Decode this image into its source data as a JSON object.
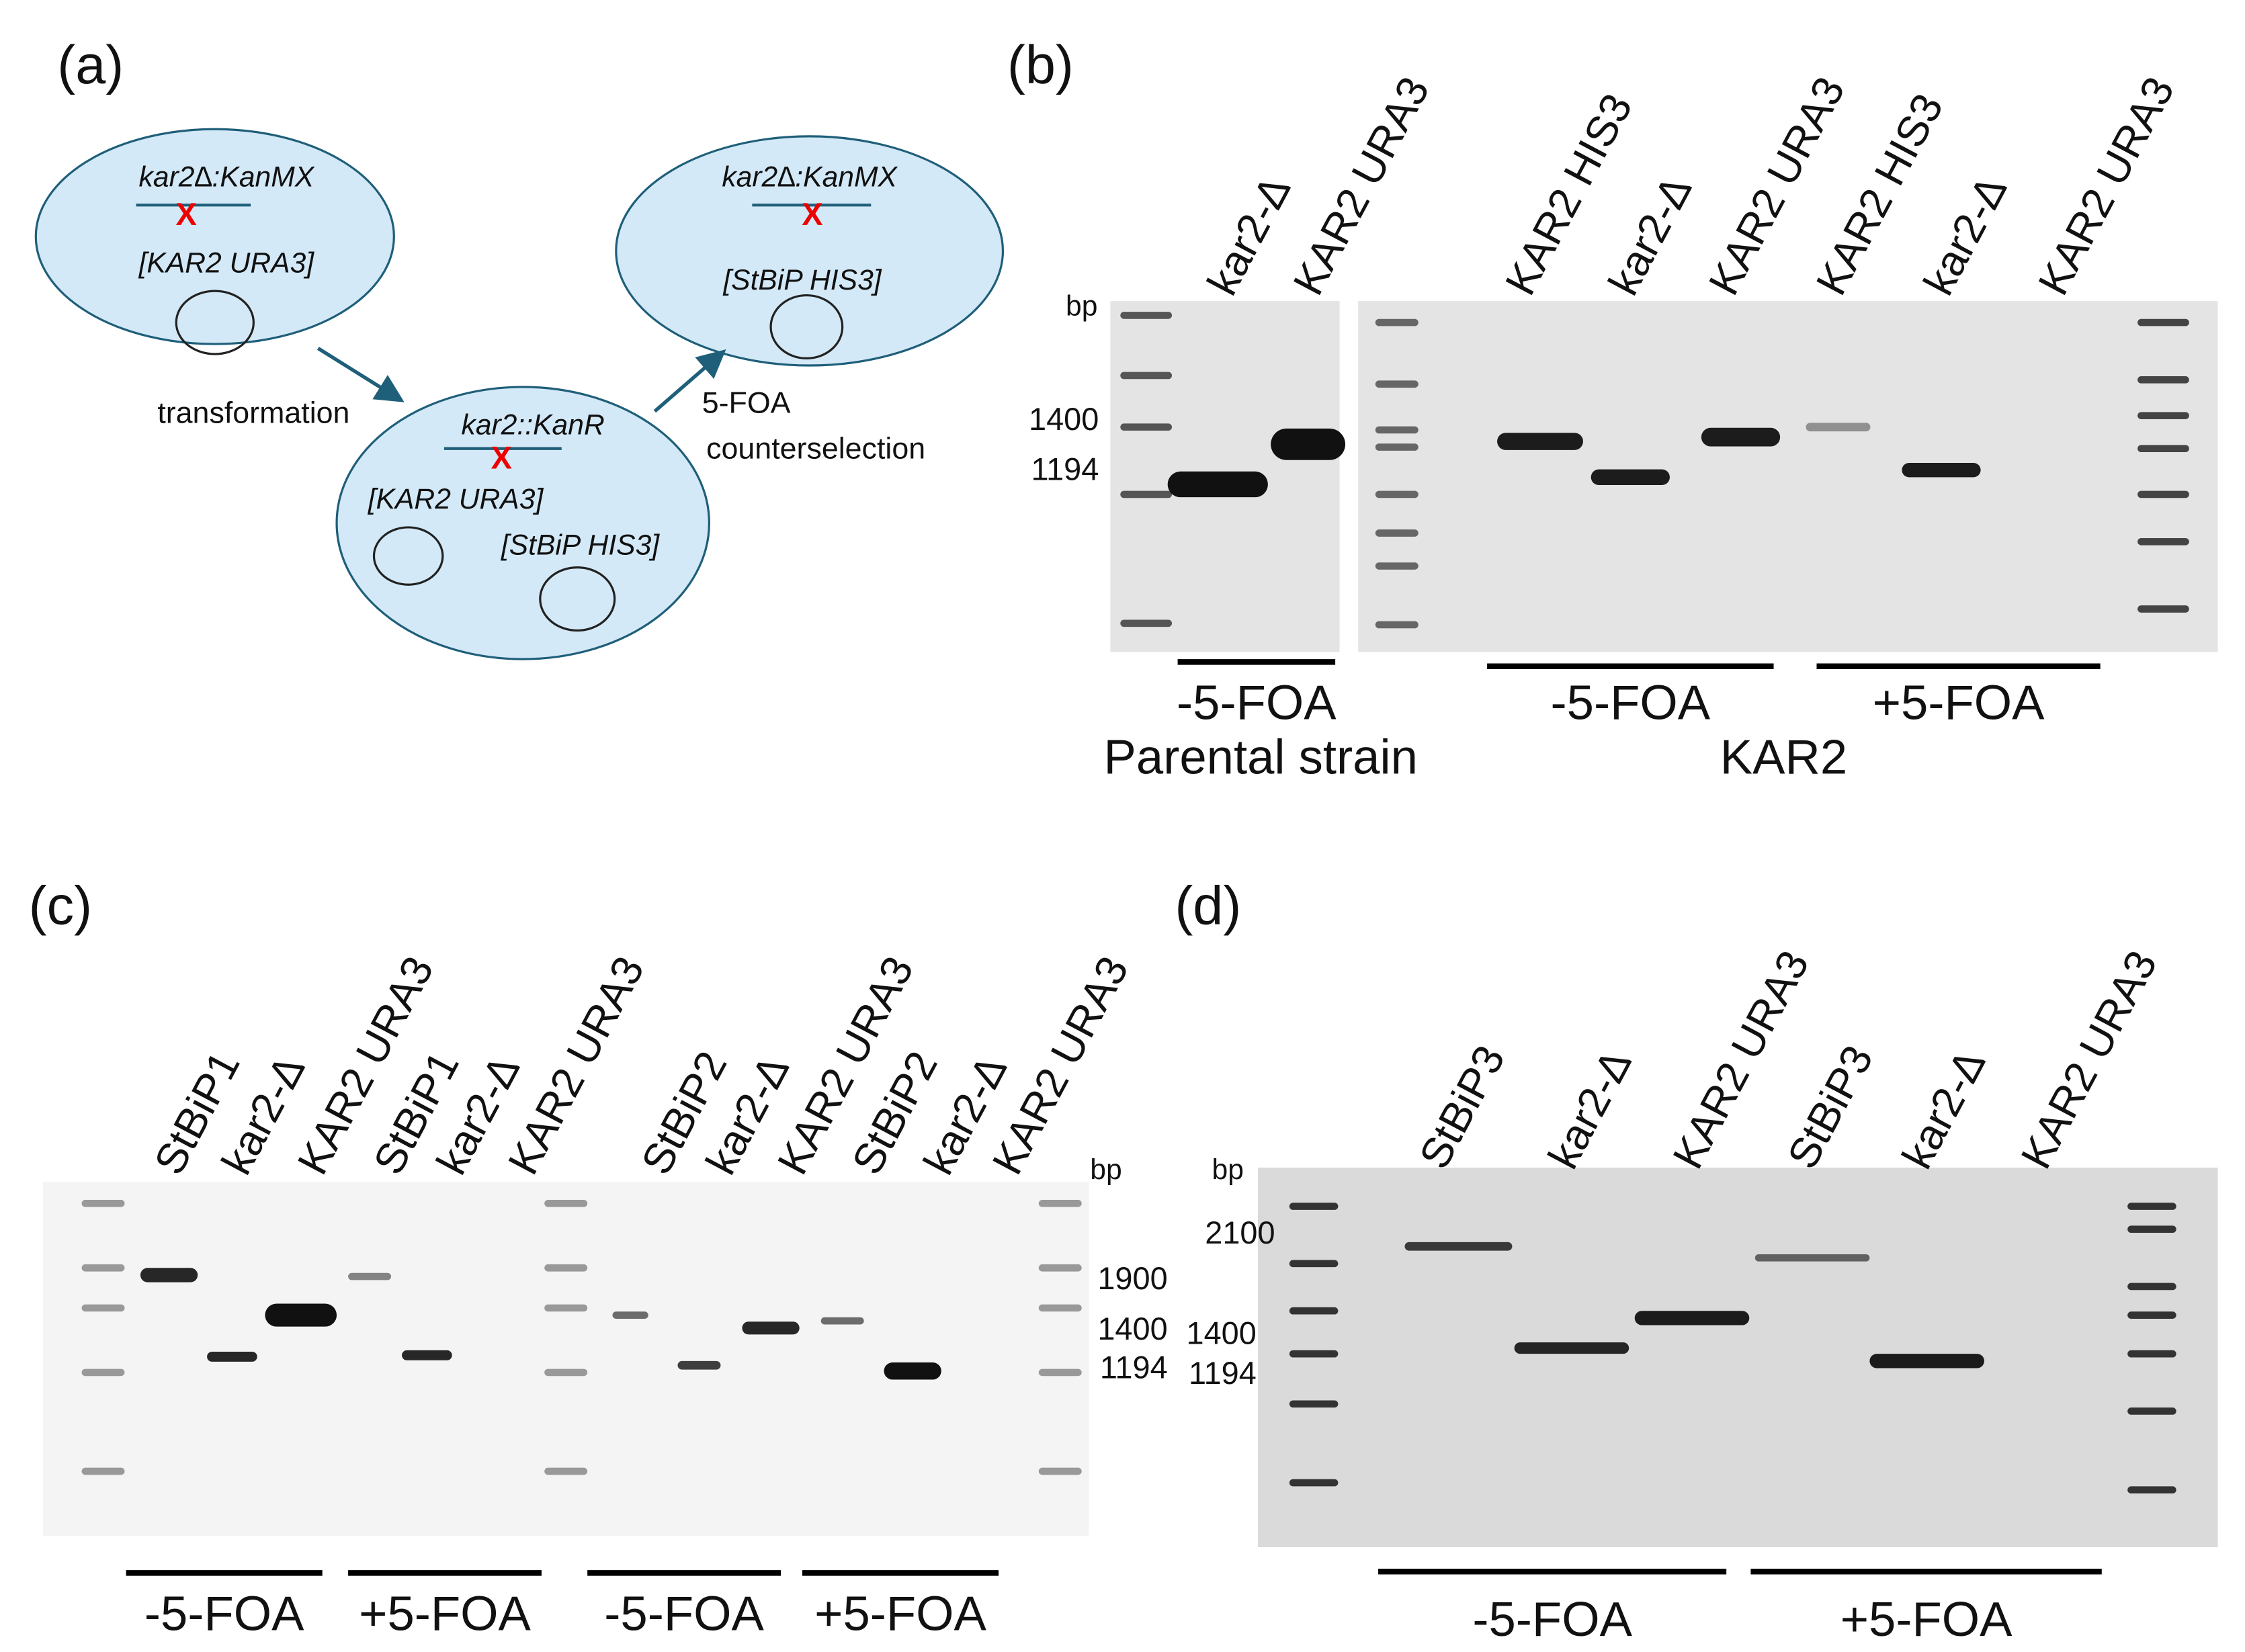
{
  "panel_a": {
    "label": "(a)",
    "cells": [
      {
        "genotype": "kar2∆:KanMX",
        "plasmids": [
          "[KAR2 URA3]"
        ]
      },
      {
        "genotype": "kar2::KanR",
        "plasmids": [
          "[KAR2 URA3]",
          "[StBiP HIS3]"
        ]
      },
      {
        "genotype": "kar2∆:KanMX",
        "plasmids": [
          "[StBiP HIS3]"
        ]
      }
    ],
    "step1": "transformation",
    "step2": [
      "5-FOA",
      "counterselection"
    ]
  },
  "panel_b": {
    "label": "(b)",
    "lanes": [
      "kar2-Δ",
      "KAR2 URA3",
      "KAR2 HIS3",
      "kar2-Δ",
      "KAR2 URA3",
      "KAR2 HIS3",
      "kar2-Δ",
      "KAR2 URA3"
    ],
    "unit": "bp",
    "markers": [
      1400,
      1194
    ],
    "groups": [
      "-5-FOA",
      "-5-FOA",
      "+5-FOA"
    ],
    "subtitles": [
      "Parental strain",
      "KAR2"
    ]
  },
  "panel_c": {
    "label": "(c)",
    "lanes": [
      "StBiP1",
      "kar2-Δ",
      "KAR2 URA3",
      "StBiP1",
      "kar2-Δ",
      "KAR2 URA3",
      "StBiP2",
      "kar2-Δ",
      "KAR2 URA3",
      "StBiP2",
      "kar2-Δ",
      "KAR2 URA3"
    ],
    "unit": "bp",
    "markers": [
      1900,
      1400,
      1194
    ],
    "groups": [
      "-5-FOA",
      "+5-FOA",
      "-5-FOA",
      "+5-FOA"
    ]
  },
  "panel_d": {
    "label": "(d)",
    "lanes": [
      "StBiP3",
      "kar2-Δ",
      "KAR2 URA3",
      "StBiP3",
      "kar2-Δ",
      "KAR2 URA3"
    ],
    "unit": "bp",
    "markers": [
      2100,
      1400,
      1194
    ],
    "groups": [
      "-5-FOA",
      "+5-FOA"
    ]
  }
}
